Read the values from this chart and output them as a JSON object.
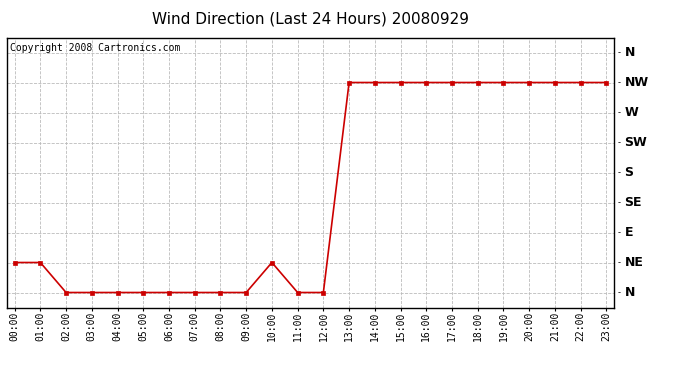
{
  "title": "Wind Direction (Last 24 Hours) 20080929",
  "copyright": "Copyright 2008 Cartronics.com",
  "x_labels": [
    "00:00",
    "01:00",
    "02:00",
    "03:00",
    "04:00",
    "05:00",
    "06:00",
    "07:00",
    "08:00",
    "09:00",
    "10:00",
    "11:00",
    "12:00",
    "13:00",
    "14:00",
    "15:00",
    "16:00",
    "17:00",
    "18:00",
    "19:00",
    "20:00",
    "21:00",
    "22:00",
    "23:00"
  ],
  "x_values": [
    0,
    1,
    2,
    3,
    4,
    5,
    6,
    7,
    8,
    9,
    10,
    11,
    12,
    13,
    14,
    15,
    16,
    17,
    18,
    19,
    20,
    21,
    22,
    23
  ],
  "y_values": [
    1,
    1,
    0,
    0,
    0,
    0,
    0,
    0,
    0,
    0,
    1,
    0,
    0,
    7,
    7,
    7,
    7,
    7,
    7,
    7,
    7,
    7,
    7,
    7
  ],
  "y_ticks": [
    0,
    1,
    2,
    3,
    4,
    5,
    6,
    7,
    8
  ],
  "y_labels": [
    "N",
    "NE",
    "E",
    "SE",
    "S",
    "SW",
    "W",
    "NW",
    "N"
  ],
  "line_color": "#cc0000",
  "marker": "s",
  "marker_size": 2.5,
  "marker_color": "#cc0000",
  "bg_color": "#ffffff",
  "grid_color": "#bbbbbb",
  "title_fontsize": 11,
  "axis_fontsize": 7,
  "ylabel_fontsize": 9,
  "copyright_fontsize": 7
}
